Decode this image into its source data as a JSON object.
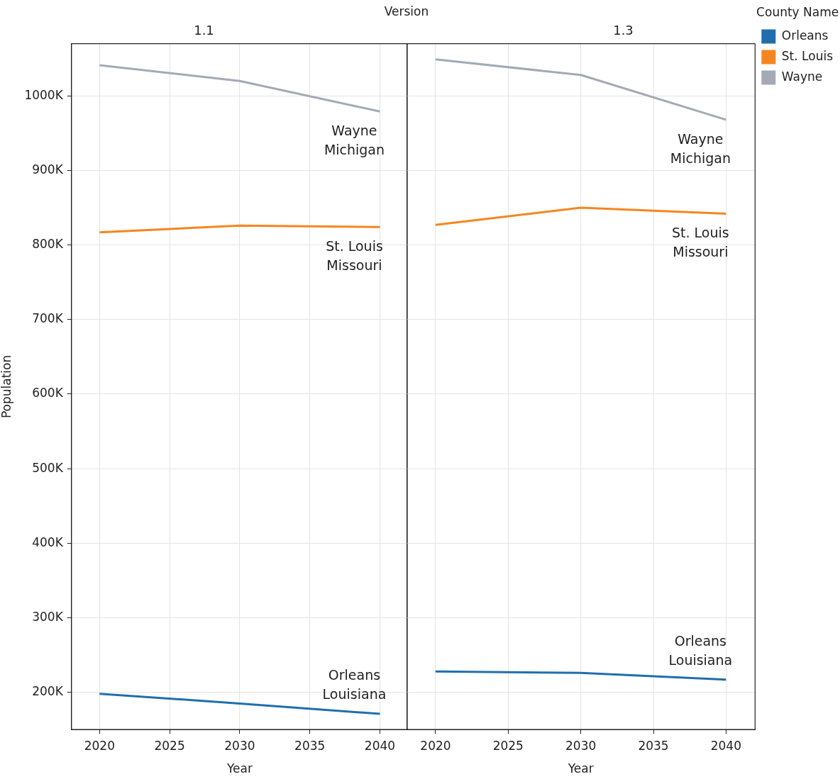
{
  "chart_data": [
    {
      "type": "line",
      "title": "1.1",
      "xlabel": "Year",
      "ylabel": "Population",
      "annotations": [
        "Orleans Louisiana",
        "St. Louis Missouri",
        "Wayne Michigan",
        "Version"
      ],
      "x": [
        2020,
        2030,
        2040
      ],
      "xlim": [
        2018,
        2042
      ],
      "xticks": [
        2020,
        2025,
        2030,
        2035,
        2040
      ],
      "ylim": [
        150000,
        1070000
      ],
      "yticks": [
        {
          "value": 200000,
          "label": "200K"
        },
        {
          "value": 300000,
          "label": "300K"
        },
        {
          "value": 400000,
          "label": "400K"
        },
        {
          "value": 500000,
          "label": "500K"
        },
        {
          "value": 600000,
          "label": "600K"
        },
        {
          "value": 700000,
          "label": "700K"
        },
        {
          "value": 800000,
          "label": "800K"
        },
        {
          "value": 900000,
          "label": "900K"
        },
        {
          "value": 1000000,
          "label": "1000K"
        }
      ],
      "grid": true,
      "legend": false,
      "marker": "none",
      "line_style": "solid",
      "series": [
        {
          "color": "#1f6fae",
          "values": [
            198000,
            185000,
            171000
          ]
        },
        {
          "color": "#f5861f",
          "values": [
            817000,
            826000,
            824000
          ]
        },
        {
          "color": "#a3aab5",
          "values": [
            1041000,
            1020000,
            979000
          ]
        }
      ]
    },
    {
      "type": "line",
      "title": "1.3",
      "xlabel": "Year",
      "legend_title": "County Name",
      "annotations": [
        "Orleans Louisiana",
        "St. Louis Missouri",
        "Wayne Michigan"
      ],
      "x": [
        2020,
        2030,
        2040
      ],
      "xlim": [
        2018,
        2042
      ],
      "xticks": [
        2020,
        2025,
        2030,
        2035,
        2040
      ],
      "ylim": [
        150000,
        1070000
      ],
      "yticks": [
        200000,
        300000,
        400000,
        500000,
        600000,
        700000,
        800000,
        900000,
        1000000
      ],
      "tick_labels": "x",
      "grid": true,
      "legend": "right",
      "marker": "none",
      "line_style": "solid",
      "series": [
        {
          "name": "Orleans",
          "color": "#1f6fae",
          "values": [
            228000,
            226000,
            217000
          ]
        },
        {
          "name": "St. Louis",
          "color": "#f5861f",
          "values": [
            827000,
            850000,
            842000
          ]
        },
        {
          "name": "Wayne",
          "color": "#a3aab5",
          "values": [
            1049000,
            1028000,
            968000
          ]
        }
      ]
    }
  ]
}
